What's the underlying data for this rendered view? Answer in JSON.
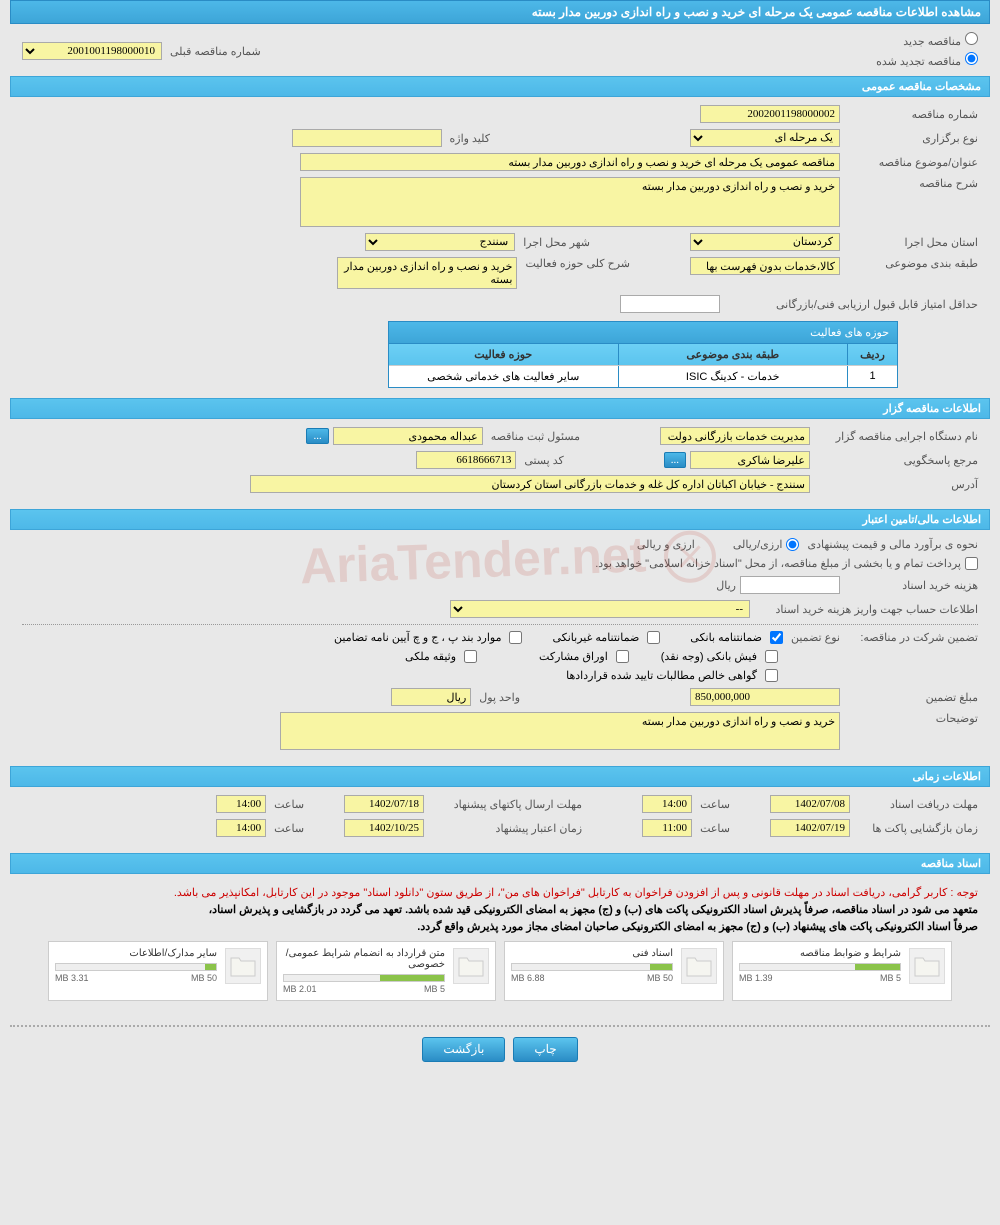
{
  "header": {
    "title": "مشاهده اطلاعات مناقصه عمومی یک مرحله ای خرید و نصب و راه اندازی دوربین مدار بسته"
  },
  "top": {
    "radio_new": "مناقصه جدید",
    "radio_renewed": "مناقصه تجدید شده",
    "prev_label": "شماره مناقصه قبلی",
    "prev_value": "2001001198000010"
  },
  "sec_general": {
    "title": "مشخصات مناقصه عمومی"
  },
  "general": {
    "num_label": "شماره مناقصه",
    "num_value": "2002001198000002",
    "type_label": "نوع برگزاری",
    "type_value": "یک مرحله ای",
    "keyword_label": "کلید واژه",
    "keyword_value": "",
    "subject_label": "عنوان/موضوع مناقصه",
    "subject_value": "مناقصه عمومی یک مرحله ای خرید و نصب و راه اندازی دوربین مدار بسته",
    "desc_label": "شرح مناقصه",
    "desc_value": "خرید و نصب و راه اندازی دوربین مدار بسته",
    "province_label": "استان محل اجرا",
    "province_value": "کردستان",
    "city_label": "شهر محل اجرا",
    "city_value": "سنندج",
    "category_label": "طبقه بندی موضوعی",
    "category_value": "کالا،خدمات بدون فهرست بها",
    "scope_label": "شرح کلی حوزه فعالیت",
    "scope_value": "خرید و نصب و راه اندازی دوربین مدار بسته",
    "min_score_label": "حداقل امتیاز قابل قبول ارزیابی فنی/بازرگانی",
    "min_score_value": ""
  },
  "activity_table": {
    "title": "حوزه های فعالیت",
    "h_row": "ردیف",
    "h_cat": "طبقه بندی موضوعی",
    "h_scope": "حوزه فعالیت",
    "rows": [
      {
        "n": "1",
        "cat": "خدمات - کدینگ ISIC",
        "scope": "سایر فعالیت های خدماتی شخصی"
      }
    ]
  },
  "sec_org": {
    "title": "اطلاعات مناقصه گزار"
  },
  "org": {
    "agency_label": "نام دستگاه اجرایی مناقصه گزار",
    "agency_value": "مدیریت خدمات بازرگانی دولت",
    "reg_label": "مسئول ثبت مناقصه",
    "reg_value": "عبداله محمودی",
    "contact_label": "مرجع پاسخگویی",
    "contact_value": "علیرضا شاکری",
    "postal_label": "کد پستی",
    "postal_value": "6618666713",
    "address_label": "آدرس",
    "address_value": "سنندج - خیابان اکباتان اداره کل غله و خدمات بازرگانی استان کردستان",
    "more": "..."
  },
  "sec_fin": {
    "title": "اطلاعات مالی/تامین اعتبار"
  },
  "fin": {
    "est_label": "نحوه ی برآورد مالی و قیمت پیشنهادی",
    "est_opt": "ارزی/ریالی",
    "est_cur": "ارزی و ریالی",
    "treasury": "پرداخت تمام و یا بخشی از مبلغ مناقصه، از محل \"اسناد خزانه اسلامی\" خواهد بود.",
    "doc_cost_label": "هزینه خرید اسناد",
    "doc_cost_value": "",
    "rial": "ریال",
    "account_label": "اطلاعات حساب جهت واریز هزینه خرید اسناد",
    "account_value": "--",
    "guarantee_label": "تضمین شرکت در مناقصه:",
    "guarantee_type_label": "نوع تضمین",
    "cb_bank": "ضمانتنامه بانکی",
    "cb_nonbank": "ضمانتنامه غیربانکی",
    "cb_clause": "موارد بند پ ، ج و چ آیین نامه تضامین",
    "cb_cash": "فیش بانکی (وجه نقد)",
    "cb_bonds": "اوراق مشارکت",
    "cb_deed": "وثیقه ملکی",
    "cb_cert": "گواهی خالص مطالبات تایید شده قراردادها",
    "amount_label": "مبلغ تضمین",
    "amount_value": "850,000,000",
    "unit_label": "واحد پول",
    "unit_value": "ریال",
    "remarks_label": "توضیحات",
    "remarks_value": "خرید و نصب و راه اندازی دوربین مدار بسته"
  },
  "sec_time": {
    "title": "اطلاعات زمانی"
  },
  "time": {
    "receive_label": "مهلت دریافت اسناد",
    "receive_date": "1402/07/08",
    "receive_h_label": "ساعت",
    "receive_h": "14:00",
    "send_label": "مهلت ارسال پاکتهای پیشنهاد",
    "send_date": "1402/07/18",
    "send_h": "14:00",
    "open_label": "زمان بازگشایی پاکت ها",
    "open_date": "1402/07/19",
    "open_h": "11:00",
    "valid_label": "زمان اعتبار پیشنهاد",
    "valid_date": "1402/10/25",
    "valid_h": "14:00"
  },
  "sec_docs": {
    "title": "اسناد مناقصه"
  },
  "notices": {
    "red": "توجه : کاربر گرامی، دریافت اسناد در مهلت قانونی و پس از افزودن فراخوان به کارتابل \"فراخوان های من\"، از طریق ستون \"دانلود اسناد\" موجود در این کارتابل، امکانپذیر می باشد.",
    "b1": "متعهد می شود در اسناد مناقصه، صرفاً پذیرش اسناد الکترونیکی پاکت های (ب) و (ج) مجهز به امضای الکترونیکی قید شده باشد. تعهد می گردد در بازگشایی و پذیرش اسناد،",
    "b2": "صرفاً اسناد الکترونیکی پاکت های پیشنهاد (ب) و (ج) مجهز به امضای الکترونیکی صاحبان امضای مجاز مورد پذیرش واقع گردد."
  },
  "docs": [
    {
      "title": "شرایط و ضوابط مناقصه",
      "size": "1.39 MB",
      "max": "5 MB",
      "pct": 28
    },
    {
      "title": "اسناد فنی",
      "size": "6.88 MB",
      "max": "50 MB",
      "pct": 14
    },
    {
      "title": "متن قرارداد به انضمام شرایط عمومی/خصوصی",
      "size": "2.01 MB",
      "max": "5 MB",
      "pct": 40
    },
    {
      "title": "سایر مدارک/اطلاعات",
      "size": "3.31 MB",
      "max": "50 MB",
      "pct": 7
    }
  ],
  "footer": {
    "print": "چاپ",
    "back": "بازگشت"
  }
}
